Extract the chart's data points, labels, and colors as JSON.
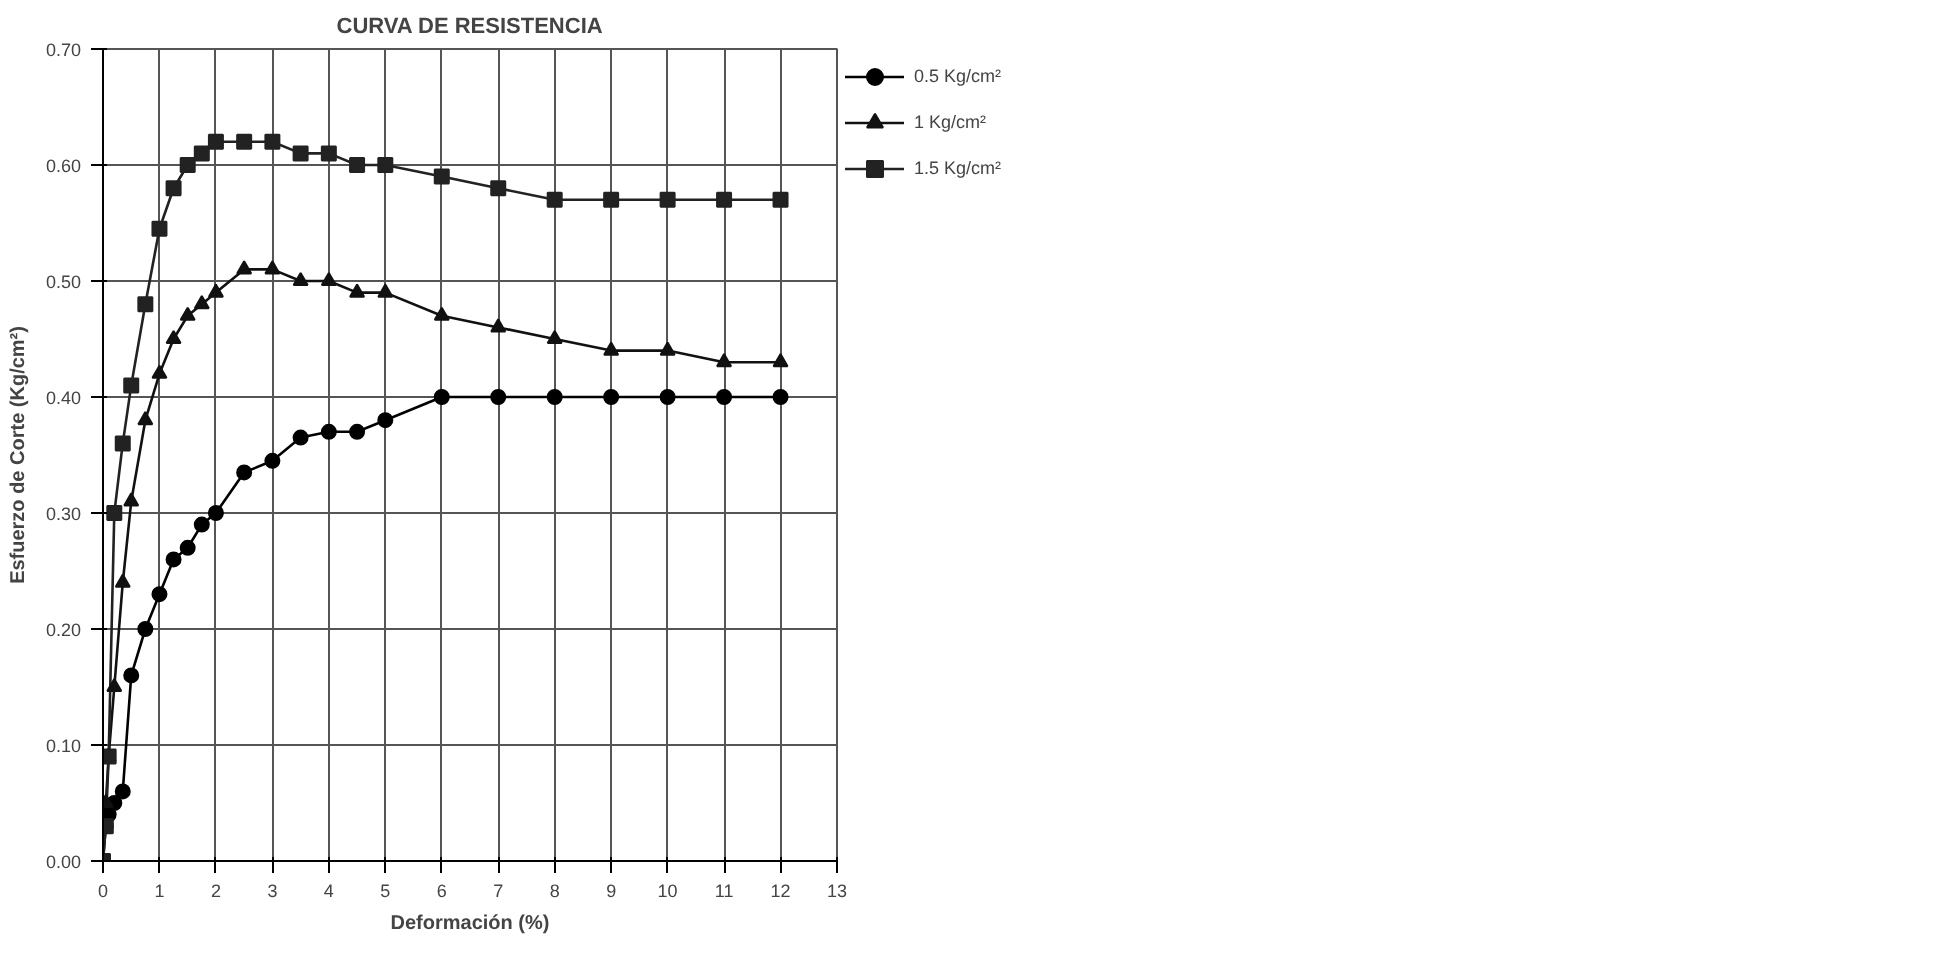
{
  "chart_data": {
    "type": "line",
    "title": "CURVA DE RESISTENCIA",
    "xlabel": "Deformación (%)",
    "ylabel": "Esfuerzo de Corte (Kg/cm²)",
    "x": [
      0,
      0.05,
      0.1,
      0.2,
      0.35,
      0.5,
      0.75,
      1,
      1.25,
      1.5,
      1.75,
      2,
      2.5,
      3,
      3.5,
      4,
      4.5,
      5,
      6,
      7,
      8,
      9,
      10,
      11,
      12
    ],
    "series": [
      {
        "name": "0.5 Kg/cm²",
        "color": "#000000",
        "marker": "circle",
        "values": [
          0,
          0.03,
          0.04,
          0.05,
          0.06,
          0.16,
          0.2,
          0.23,
          0.26,
          0.27,
          0.29,
          0.3,
          0.335,
          0.345,
          0.365,
          0.37,
          0.37,
          0.38,
          0.4,
          0.4,
          0.4,
          0.4,
          0.4,
          0.4,
          0.4
        ]
      },
      {
        "name": "1 Kg/cm²",
        "color": "#111111",
        "marker": "triangle",
        "values": [
          0,
          0.05,
          0.09,
          0.15,
          0.24,
          0.31,
          0.38,
          0.42,
          0.45,
          0.47,
          0.48,
          0.49,
          0.51,
          0.51,
          0.5,
          0.5,
          0.49,
          0.49,
          0.47,
          0.46,
          0.45,
          0.44,
          0.44,
          0.43,
          0.43
        ]
      },
      {
        "name": "1.5 Kg/cm²",
        "color": "#222222",
        "marker": "square",
        "values": [
          0,
          0.03,
          0.09,
          0.3,
          0.36,
          0.41,
          0.48,
          0.545,
          0.58,
          0.6,
          0.61,
          0.62,
          0.62,
          0.62,
          0.61,
          0.61,
          0.6,
          0.6,
          0.59,
          0.58,
          0.57,
          0.57,
          0.57,
          0.57,
          0.57
        ]
      }
    ],
    "xlim": [
      0,
      13
    ],
    "xticks": [
      0,
      1,
      2,
      3,
      4,
      5,
      6,
      7,
      8,
      9,
      10,
      11,
      12,
      13
    ],
    "ylim": [
      0,
      0.7
    ],
    "yticks": [
      {
        "value": 0,
        "label": "0.00"
      },
      {
        "value": 0.1,
        "label": "0.10"
      },
      {
        "value": 0.2,
        "label": "0.20"
      },
      {
        "value": 0.3,
        "label": "0.30"
      },
      {
        "value": 0.4,
        "label": "0.40"
      },
      {
        "value": 0.5,
        "label": "0.50"
      },
      {
        "value": 0.6,
        "label": "0.60"
      },
      {
        "value": 0.7,
        "label": "0.70"
      }
    ],
    "grid": true,
    "legend": "top right",
    "line_style": "solid"
  }
}
